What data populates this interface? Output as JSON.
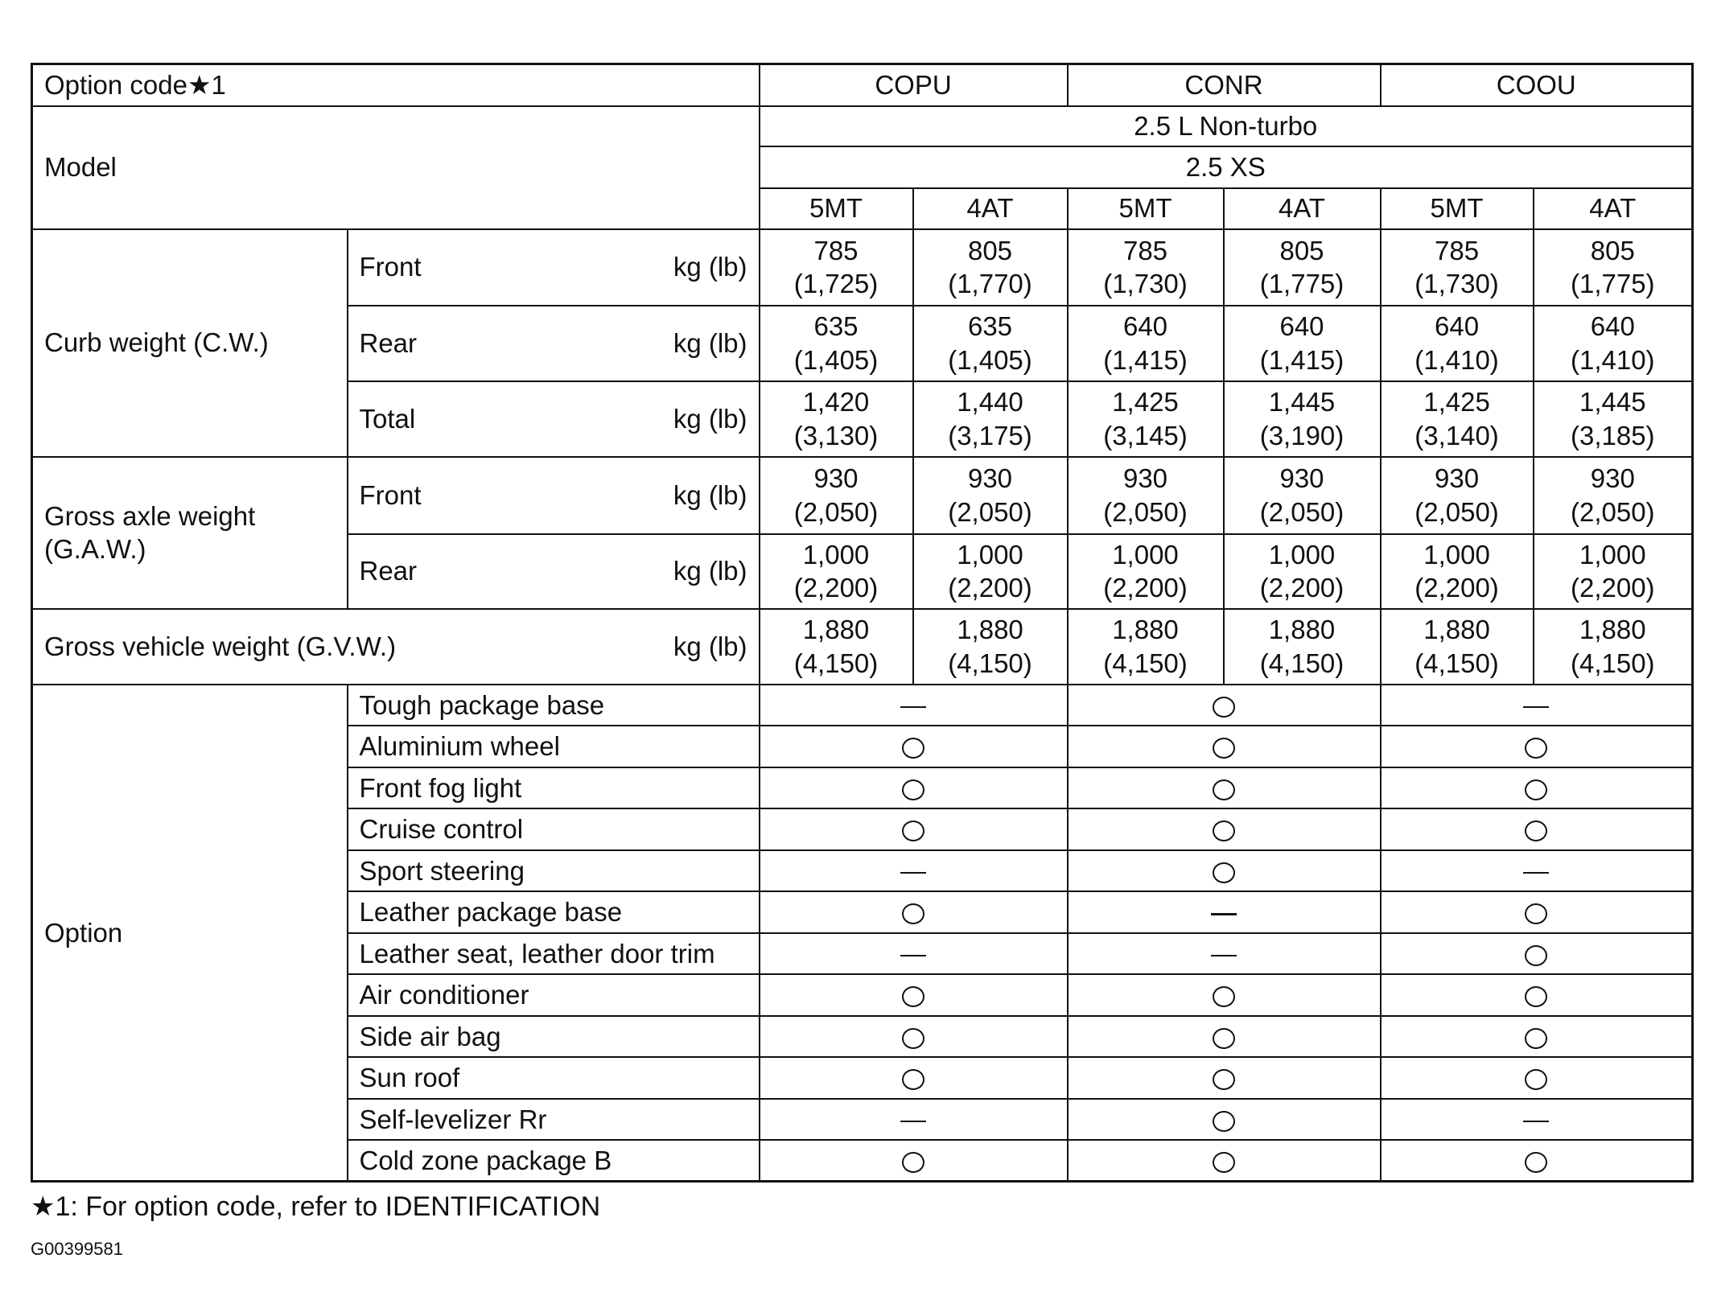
{
  "header": {
    "option_code_label": "Option code★1",
    "codes": [
      "COPU",
      "CONR",
      "COOU"
    ],
    "model_label": "Model",
    "engine": "2.5 L Non-turbo",
    "grade": "2.5 XS",
    "transmissions": [
      "5MT",
      "4AT",
      "5MT",
      "4AT",
      "5MT",
      "4AT"
    ]
  },
  "unit": "kg (lb)",
  "weights": [
    {
      "group": "Curb weight (C.W.)",
      "sub": "Front",
      "values": [
        [
          "785",
          "(1,725)"
        ],
        [
          "805",
          "(1,770)"
        ],
        [
          "785",
          "(1,730)"
        ],
        [
          "805",
          "(1,775)"
        ],
        [
          "785",
          "(1,730)"
        ],
        [
          "805",
          "(1,775)"
        ]
      ]
    },
    {
      "group": "Curb weight (C.W.)",
      "sub": "Rear",
      "values": [
        [
          "635",
          "(1,405)"
        ],
        [
          "635",
          "(1,405)"
        ],
        [
          "640",
          "(1,415)"
        ],
        [
          "640",
          "(1,415)"
        ],
        [
          "640",
          "(1,410)"
        ],
        [
          "640",
          "(1,410)"
        ]
      ]
    },
    {
      "group": "Curb weight (C.W.)",
      "sub": "Total",
      "values": [
        [
          "1,420",
          "(3,130)"
        ],
        [
          "1,440",
          "(3,175)"
        ],
        [
          "1,425",
          "(3,145)"
        ],
        [
          "1,445",
          "(3,190)"
        ],
        [
          "1,425",
          "(3,140)"
        ],
        [
          "1,445",
          "(3,185)"
        ]
      ]
    },
    {
      "group": "Gross axle weight (G.A.W.)",
      "sub": "Front",
      "values": [
        [
          "930",
          "(2,050)"
        ],
        [
          "930",
          "(2,050)"
        ],
        [
          "930",
          "(2,050)"
        ],
        [
          "930",
          "(2,050)"
        ],
        [
          "930",
          "(2,050)"
        ],
        [
          "930",
          "(2,050)"
        ]
      ]
    },
    {
      "group": "Gross axle weight (G.A.W.)",
      "sub": "Rear",
      "values": [
        [
          "1,000",
          "(2,200)"
        ],
        [
          "1,000",
          "(2,200)"
        ],
        [
          "1,000",
          "(2,200)"
        ],
        [
          "1,000",
          "(2,200)"
        ],
        [
          "1,000",
          "(2,200)"
        ],
        [
          "1,000",
          "(2,200)"
        ]
      ]
    },
    {
      "group": "Gross vehicle weight (G.V.W.)",
      "sub": "",
      "values": [
        [
          "1,880",
          "(4,150)"
        ],
        [
          "1,880",
          "(4,150)"
        ],
        [
          "1,880",
          "(4,150)"
        ],
        [
          "1,880",
          "(4,150)"
        ],
        [
          "1,880",
          "(4,150)"
        ],
        [
          "1,880",
          "(4,150)"
        ]
      ]
    }
  ],
  "groups": {
    "curb": "Curb weight (C.W.)",
    "gaw_line1": "Gross axle weight",
    "gaw_line2": "(G.A.W.)",
    "gvw": "Gross vehicle weight (G.V.W.)"
  },
  "option_label": "Option",
  "options": [
    {
      "name": "Tough package base",
      "marks": [
        "dash",
        "circle",
        "dash"
      ]
    },
    {
      "name": "Aluminium wheel",
      "marks": [
        "circle",
        "circle",
        "circle"
      ]
    },
    {
      "name": "Front fog light",
      "marks": [
        "circle",
        "circle",
        "circle"
      ]
    },
    {
      "name": "Cruise control",
      "marks": [
        "circle",
        "circle",
        "circle"
      ]
    },
    {
      "name": "Sport steering",
      "marks": [
        "dash",
        "circle",
        "dash"
      ]
    },
    {
      "name": "Leather package base",
      "marks": [
        "circle",
        "dash",
        "circle"
      ]
    },
    {
      "name": "Leather seat, leather door trim",
      "marks": [
        "dash",
        "dash",
        "circle"
      ]
    },
    {
      "name": "Air conditioner",
      "marks": [
        "circle",
        "circle",
        "circle"
      ]
    },
    {
      "name": "Side air bag",
      "marks": [
        "circle",
        "circle",
        "circle"
      ]
    },
    {
      "name": "Sun roof",
      "marks": [
        "circle",
        "circle",
        "circle"
      ]
    },
    {
      "name": "Self-levelizer Rr",
      "marks": [
        "dash",
        "circle",
        "dash"
      ]
    },
    {
      "name": "Cold zone package B",
      "marks": [
        "circle",
        "circle",
        "circle"
      ]
    }
  ],
  "footnote": "★1: For option code, refer to IDENTIFICATION",
  "figure_code": "G00399581"
}
